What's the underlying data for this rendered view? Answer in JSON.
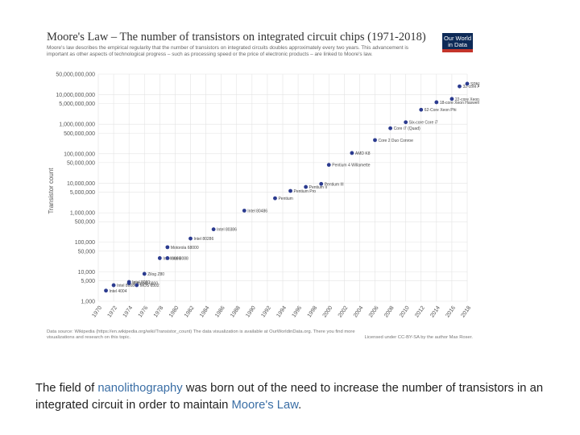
{
  "chart_data": {
    "type": "scatter",
    "title": "Moore's Law – The number of transistors on integrated circuit chips (1971-2018)",
    "subtitle": "Moore's law describes the empirical regularity that the number of transistors on integrated circuits doubles approximately every two years. This advancement is important as other aspects of technological progress – such as processing speed or the price of electronic products – are linked to Moore's law.",
    "ylabel": "Transistor count",
    "xlabel": "",
    "yscale": "log",
    "ylim": [
      1000,
      50000000000
    ],
    "xlim": [
      1970,
      2018
    ],
    "y_ticks": [
      {
        "value": 50000000000,
        "label": "50,000,000,000"
      },
      {
        "value": 10000000000,
        "label": "10,000,000,000"
      },
      {
        "value": 5000000000,
        "label": "5,000,000,000"
      },
      {
        "value": 1000000000,
        "label": "1,000,000,000"
      },
      {
        "value": 500000000,
        "label": "500,000,000"
      },
      {
        "value": 100000000,
        "label": "100,000,000"
      },
      {
        "value": 50000000,
        "label": "50,000,000"
      },
      {
        "value": 10000000,
        "label": "10,000,000"
      },
      {
        "value": 5000000,
        "label": "5,000,000"
      },
      {
        "value": 1000000,
        "label": "1,000,000"
      },
      {
        "value": 500000,
        "label": "500,000"
      },
      {
        "value": 100000,
        "label": "100,000"
      },
      {
        "value": 50000,
        "label": "50,000"
      },
      {
        "value": 10000,
        "label": "10,000"
      },
      {
        "value": 5000,
        "label": "5,000"
      },
      {
        "value": 1000,
        "label": "1,000"
      }
    ],
    "x_ticks": [
      1970,
      1972,
      1974,
      1976,
      1978,
      1980,
      1982,
      1984,
      1986,
      1988,
      1990,
      1992,
      1994,
      1996,
      1998,
      2000,
      2002,
      2004,
      2006,
      2008,
      2010,
      2012,
      2014,
      2016,
      2018
    ],
    "points": [
      {
        "x": 1971,
        "y": 2300,
        "label": "Intel 4004"
      },
      {
        "x": 1972,
        "y": 3500,
        "label": "Intel 8008"
      },
      {
        "x": 1974,
        "y": 4500,
        "label": "Intel 8080"
      },
      {
        "x": 1974,
        "y": 4100,
        "label": "Motorola 6800"
      },
      {
        "x": 1975,
        "y": 3510,
        "label": "MOS 6502"
      },
      {
        "x": 1976,
        "y": 8500,
        "label": "Zilog Z80"
      },
      {
        "x": 1978,
        "y": 29000,
        "label": "Intel 8086"
      },
      {
        "x": 1979,
        "y": 29000,
        "label": "Intel 8088"
      },
      {
        "x": 1979,
        "y": 68000,
        "label": "Motorola 68000"
      },
      {
        "x": 1982,
        "y": 134000,
        "label": "Intel 80286"
      },
      {
        "x": 1985,
        "y": 275000,
        "label": "Intel 80386"
      },
      {
        "x": 1989,
        "y": 1180000,
        "label": "Intel 80486"
      },
      {
        "x": 1993,
        "y": 3100000,
        "label": "Pentium"
      },
      {
        "x": 1995,
        "y": 5500000,
        "label": "Pentium Pro"
      },
      {
        "x": 1997,
        "y": 7500000,
        "label": "Pentium II"
      },
      {
        "x": 1999,
        "y": 9500000,
        "label": "Pentium III"
      },
      {
        "x": 2000,
        "y": 42000000,
        "label": "Pentium 4 Willamette"
      },
      {
        "x": 2003,
        "y": 105900000,
        "label": "AMD K8"
      },
      {
        "x": 2006,
        "y": 291000000,
        "label": "Core 2 Duo Conroe"
      },
      {
        "x": 2008,
        "y": 731000000,
        "label": "Core i7 (Quad)"
      },
      {
        "x": 2010,
        "y": 1170000000,
        "label": "Six-core Core i7"
      },
      {
        "x": 2012,
        "y": 3100000000,
        "label": "62-Core Xeon Phi"
      },
      {
        "x": 2014,
        "y": 5560000000,
        "label": "18-core Xeon Haswell-E5"
      },
      {
        "x": 2016,
        "y": 7200000000,
        "label": "22-core Xeon Broadwell-E5"
      },
      {
        "x": 2017,
        "y": 19200000000,
        "label": "32-core AMD Epyc"
      },
      {
        "x": 2018,
        "y": 23600000000,
        "label": "SPARC M7"
      }
    ],
    "source": "Data source: Wikipedia (https://en.wikipedia.org/wiki/Transistor_count) The data visualization is available at OurWorldinData.org. There you find more visualizations and research on this topic.",
    "license": "Licensed under CC-BY-SA by the author Max Roser.",
    "logo_text": "Our World in Data"
  },
  "caption": {
    "before": "The field of ",
    "link1": "nanolithography",
    "middle": " was born out of the need to increase the number of transistors in an integrated circuit in order to maintain ",
    "link2": "Moore's Law",
    "after": "."
  },
  "colors": {
    "point": "#2b3b8f",
    "grid": "#e3e3e3",
    "text": "#555555"
  }
}
